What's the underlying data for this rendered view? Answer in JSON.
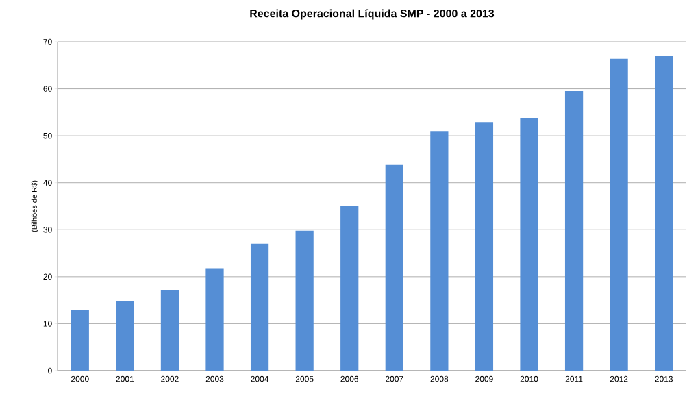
{
  "chart_data": {
    "type": "bar",
    "title": "Receita Operacional Líquida SMP - 2000 a 2013",
    "ylabel": "(Bilhões de R$)",
    "categories": [
      "2000",
      "2001",
      "2002",
      "2003",
      "2004",
      "2005",
      "2006",
      "2007",
      "2008",
      "2009",
      "2010",
      "2011",
      "2012",
      "2013"
    ],
    "values": [
      12.9,
      14.8,
      17.2,
      21.8,
      27.0,
      29.8,
      35.0,
      43.8,
      51.0,
      52.9,
      53.8,
      59.5,
      66.4,
      67.1
    ],
    "color": "#558ed5",
    "ylim": [
      0,
      70
    ],
    "yticks": [
      0,
      10,
      20,
      30,
      40,
      50,
      60,
      70
    ],
    "grid": "y"
  }
}
